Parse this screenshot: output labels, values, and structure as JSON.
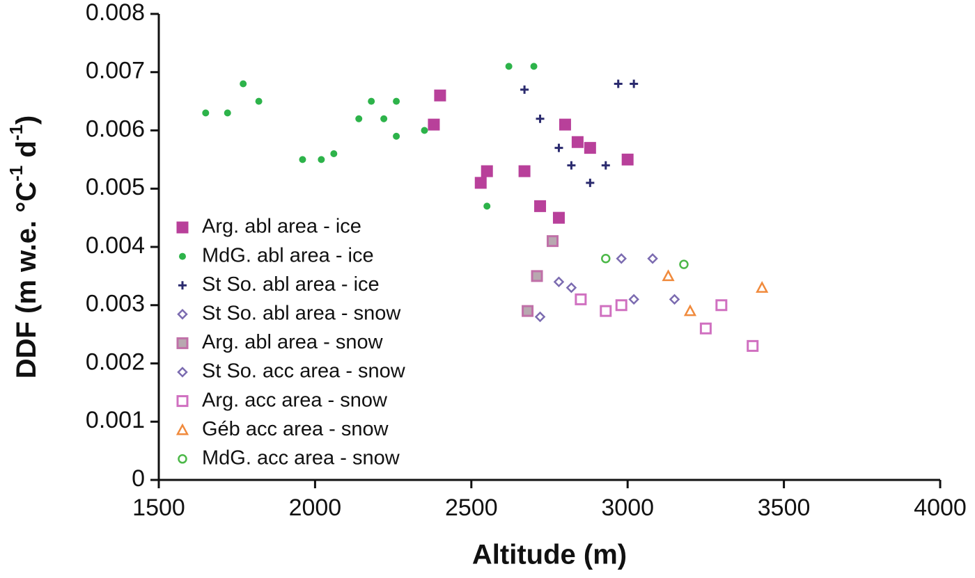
{
  "chart_data": {
    "type": "scatter",
    "x_label": "Altitude (m)",
    "y_label": [
      "DDF (m w.e. °C",
      "-1",
      " d",
      "-1",
      ")"
    ],
    "xlim": [
      1500,
      4000
    ],
    "xticks": [
      1500,
      2000,
      2500,
      3000,
      3500,
      4000
    ],
    "ylim": [
      0,
      0.008
    ],
    "yticks": [
      0,
      0.001,
      0.002,
      0.003,
      0.004,
      0.005,
      0.006,
      0.007,
      0.008
    ],
    "legend": "lower-left",
    "series": [
      {
        "name": "Arg. abl area - ice",
        "color": "#b8409a",
        "marker": "square",
        "filled": true,
        "x": [
          2400,
          2380,
          2530,
          2550,
          2670,
          2720,
          2780,
          2800,
          2840,
          2880,
          3000
        ],
        "values": [
          0.0066,
          0.0061,
          0.0051,
          0.0053,
          0.0053,
          0.0047,
          0.0045,
          0.0061,
          0.0058,
          0.0057,
          0.0055
        ]
      },
      {
        "name": "MdG. abl area - ice",
        "color": "#2db34a",
        "marker": "circle",
        "filled": true,
        "x": [
          1650,
          1720,
          1770,
          1820,
          1960,
          2020,
          2060,
          2140,
          2180,
          2220,
          2260,
          2260,
          2350,
          2550,
          2620,
          2700
        ],
        "values": [
          0.0063,
          0.0063,
          0.0068,
          0.0065,
          0.0055,
          0.0055,
          0.0056,
          0.0062,
          0.0065,
          0.0062,
          0.0065,
          0.0059,
          0.006,
          0.0047,
          0.0071,
          0.0071
        ]
      },
      {
        "name": "St So. abl area - ice",
        "color": "#2a2a6e",
        "marker": "plus",
        "filled": true,
        "x": [
          2670,
          2720,
          2780,
          2820,
          2880,
          2930,
          2970,
          3020
        ],
        "values": [
          0.0067,
          0.0062,
          0.0057,
          0.0054,
          0.0051,
          0.0054,
          0.0068,
          0.0068
        ]
      },
      {
        "name": "St So. abl area - snow",
        "color": "#7b6bb0",
        "marker": "diamond",
        "filled": false,
        "x": [
          2720,
          2780,
          2820
        ],
        "values": [
          0.0028,
          0.0034,
          0.0033
        ]
      },
      {
        "name": "Arg. abl area - snow",
        "color": "#c070a8",
        "marker": "square",
        "filled": true,
        "fill": "#b8a8b0",
        "x": [
          2760,
          2710,
          2680
        ],
        "values": [
          0.0041,
          0.0035,
          0.0029
        ]
      },
      {
        "name": "St So. acc area - snow",
        "color": "#7b6bb0",
        "marker": "diamond",
        "filled": false,
        "x": [
          2980,
          3080,
          3150,
          3020
        ],
        "values": [
          0.0038,
          0.0038,
          0.0031,
          0.0031
        ]
      },
      {
        "name": "Arg. acc area - snow",
        "color": "#d070c0",
        "marker": "square",
        "filled": false,
        "x": [
          2850,
          2930,
          2980,
          3250,
          3300,
          3400
        ],
        "values": [
          0.0031,
          0.0029,
          0.003,
          0.0026,
          0.003,
          0.0023
        ]
      },
      {
        "name": "Géb  acc area - snow",
        "color": "#f08a3c",
        "marker": "triangle",
        "filled": false,
        "x": [
          3130,
          3200,
          3430
        ],
        "values": [
          0.0035,
          0.0029,
          0.0033
        ]
      },
      {
        "name": "MdG. acc area - snow",
        "color": "#4cb848",
        "marker": "circle",
        "filled": false,
        "x": [
          2930,
          3180
        ],
        "values": [
          0.0038,
          0.0037
        ]
      }
    ]
  }
}
